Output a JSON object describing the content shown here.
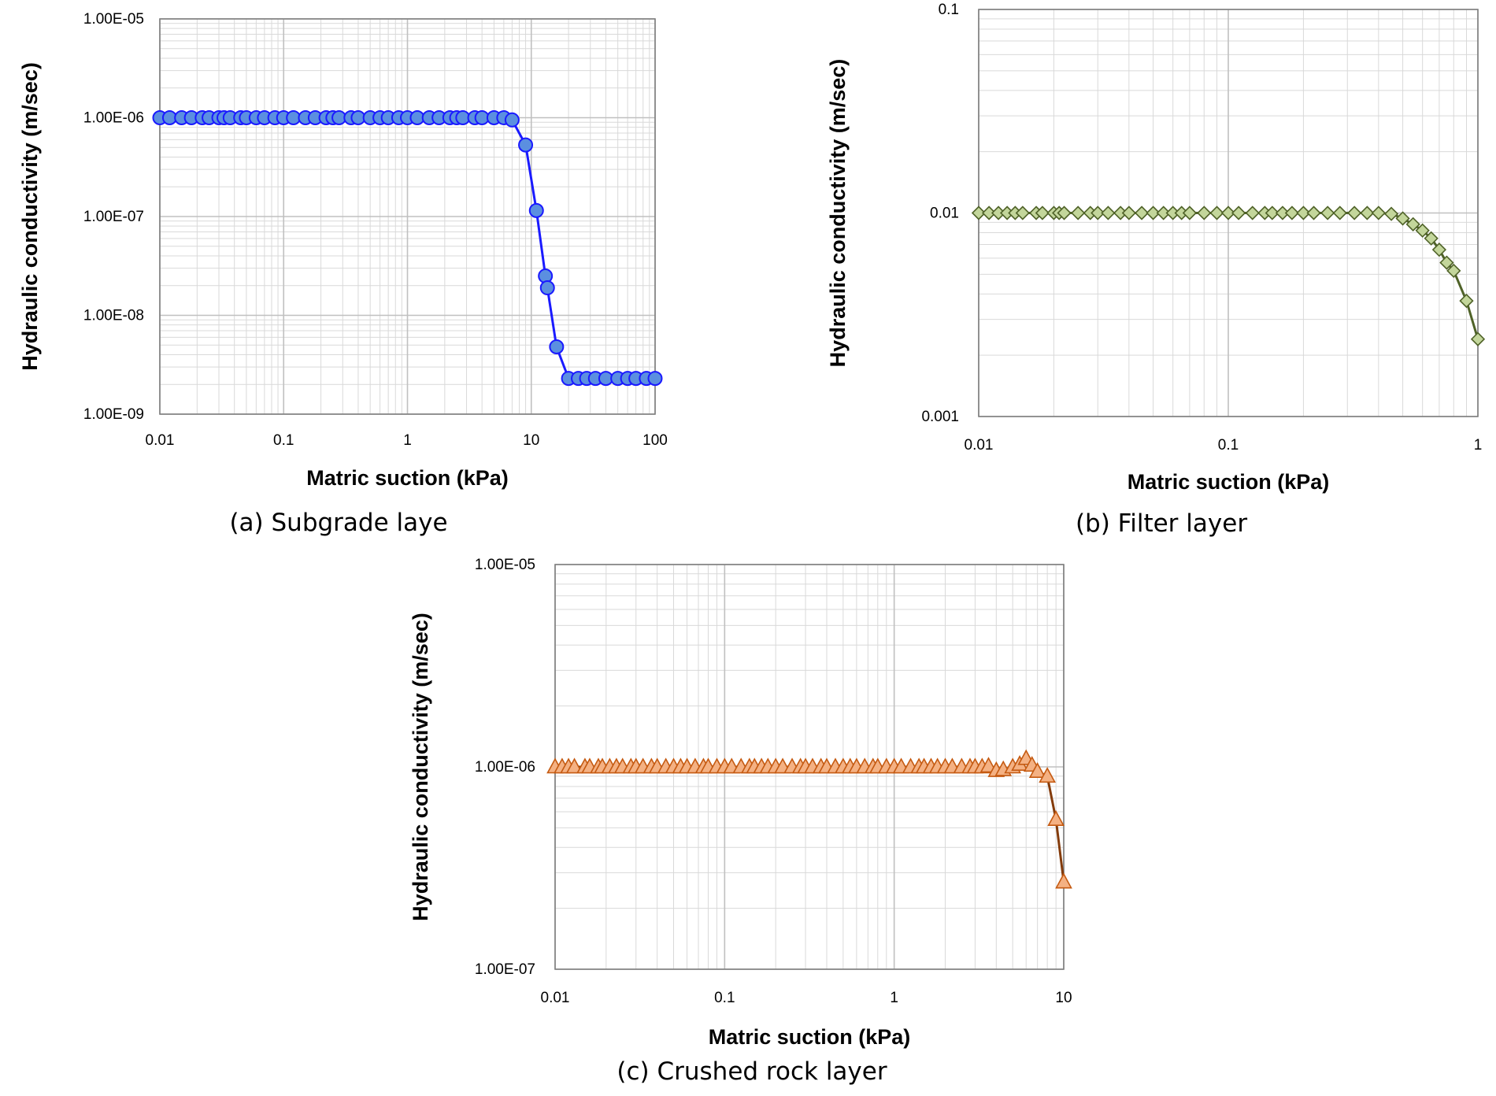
{
  "chart_data": [
    {
      "type": "line",
      "panel": "a",
      "caption": "(a) Subgrade laye",
      "title": "",
      "xlabel": "Matric suction (kPa)",
      "ylabel": "Hydraulic conductivity (m/sec)",
      "x_scale": "log",
      "y_scale": "log",
      "xlim": [
        0.01,
        100
      ],
      "ylim": [
        1e-09,
        1e-05
      ],
      "x_ticks": [
        0.01,
        0.1,
        1,
        10,
        100
      ],
      "x_tick_labels": [
        "0.01",
        "0.1",
        "1",
        "10",
        "100"
      ],
      "y_ticks": [
        1e-09,
        1e-08,
        1e-07,
        1e-06,
        1e-05
      ],
      "y_tick_labels": [
        "1.00E-09",
        "1.00E-08",
        "1.00E-07",
        "1.00E-06",
        "1.00E-05"
      ],
      "grid": true,
      "legend": "none",
      "marker": "circle",
      "line_color": "#1a1aff",
      "marker_fill": "#5b8fe0",
      "marker_edge": "#1a1aff",
      "series": [
        {
          "x": [
            0.01,
            0.012,
            0.015,
            0.018,
            0.022,
            0.025,
            0.03,
            0.033,
            0.037,
            0.045,
            0.05,
            0.06,
            0.07,
            0.085,
            0.1,
            0.12,
            0.15,
            0.18,
            0.22,
            0.25,
            0.28,
            0.35,
            0.4,
            0.5,
            0.6,
            0.7,
            0.85,
            1.0,
            1.2,
            1.5,
            1.8,
            2.2,
            2.5,
            2.8,
            3.5,
            4.0,
            5.0,
            6.0,
            7.0,
            9.0,
            11.0,
            13.0,
            13.5,
            16.0,
            20.0,
            24.0,
            28.0,
            33.0,
            40.0,
            50.0,
            60.0,
            70.0,
            85.0,
            100.0
          ],
          "y": [
            1e-06,
            1e-06,
            1e-06,
            1e-06,
            1e-06,
            1e-06,
            1e-06,
            1e-06,
            1e-06,
            1e-06,
            1e-06,
            1e-06,
            1e-06,
            1e-06,
            1e-06,
            1e-06,
            1e-06,
            1e-06,
            1e-06,
            1e-06,
            1e-06,
            1e-06,
            1e-06,
            1e-06,
            1e-06,
            1e-06,
            1e-06,
            1e-06,
            1e-06,
            1e-06,
            1e-06,
            1e-06,
            1e-06,
            1e-06,
            1e-06,
            1e-06,
            1e-06,
            1e-06,
            9.5e-07,
            5.3e-07,
            1.15e-07,
            2.5e-08,
            1.9e-08,
            4.8e-09,
            2.3e-09,
            2.3e-09,
            2.3e-09,
            2.3e-09,
            2.3e-09,
            2.3e-09,
            2.3e-09,
            2.3e-09,
            2.3e-09,
            2.3e-09
          ]
        }
      ]
    },
    {
      "type": "line",
      "panel": "b",
      "caption": "(b) Filter layer",
      "title": "",
      "xlabel": "Matric suction (kPa)",
      "ylabel": "Hydraulic conductivity (m/sec)",
      "x_scale": "log",
      "y_scale": "log",
      "xlim": [
        0.01,
        1
      ],
      "ylim": [
        0.001,
        0.1
      ],
      "x_ticks": [
        0.01,
        0.1,
        1
      ],
      "x_tick_labels": [
        "0.01",
        "0.1",
        "1"
      ],
      "y_ticks": [
        0.001,
        0.01,
        0.1
      ],
      "y_tick_labels": [
        "0.001",
        "0.01",
        "0.1"
      ],
      "grid": true,
      "legend": "none",
      "marker": "diamond",
      "line_color": "#4f6228",
      "marker_fill": "#c3d69b",
      "marker_edge": "#4f6228",
      "series": [
        {
          "x": [
            0.01,
            0.011,
            0.012,
            0.013,
            0.014,
            0.015,
            0.017,
            0.018,
            0.02,
            0.021,
            0.022,
            0.025,
            0.028,
            0.03,
            0.033,
            0.037,
            0.04,
            0.045,
            0.05,
            0.055,
            0.06,
            0.065,
            0.07,
            0.08,
            0.09,
            0.1,
            0.11,
            0.125,
            0.14,
            0.15,
            0.165,
            0.18,
            0.2,
            0.22,
            0.25,
            0.28,
            0.32,
            0.36,
            0.4,
            0.45,
            0.5,
            0.55,
            0.6,
            0.65,
            0.7,
            0.75,
            0.8,
            0.9,
            1.0
          ],
          "y": [
            0.01,
            0.01,
            0.01,
            0.01,
            0.01,
            0.01,
            0.01,
            0.01,
            0.01,
            0.01,
            0.01,
            0.01,
            0.01,
            0.01,
            0.01,
            0.01,
            0.01,
            0.01,
            0.01,
            0.01,
            0.01,
            0.01,
            0.01,
            0.01,
            0.01,
            0.01,
            0.01,
            0.01,
            0.01,
            0.01,
            0.01,
            0.01,
            0.01,
            0.01,
            0.01,
            0.01,
            0.01,
            0.01,
            0.01,
            0.0099,
            0.0094,
            0.0088,
            0.0082,
            0.0075,
            0.0066,
            0.0057,
            0.0052,
            0.0037,
            0.0024
          ]
        }
      ]
    },
    {
      "type": "line",
      "panel": "c",
      "caption": "(c) Crushed rock layer",
      "title": "",
      "xlabel": "Matric suction (kPa)",
      "ylabel": "Hydraulic conductivity (m/sec)",
      "x_scale": "log",
      "y_scale": "log",
      "xlim": [
        0.01,
        10
      ],
      "ylim": [
        1e-07,
        1e-05
      ],
      "x_ticks": [
        0.01,
        0.1,
        1,
        10
      ],
      "x_tick_labels": [
        "0.01",
        "0.1",
        "1",
        "10"
      ],
      "y_ticks": [
        1e-07,
        1e-06,
        1e-05
      ],
      "y_tick_labels": [
        "1.00E-07",
        "1.00E-06",
        "1.00E-05"
      ],
      "grid": true,
      "legend": "none",
      "marker": "triangle",
      "line_color": "#843c0c",
      "marker_fill": "#f4b183",
      "marker_edge": "#c55a11",
      "series": [
        {
          "x": [
            0.01,
            0.011,
            0.012,
            0.013,
            0.015,
            0.016,
            0.018,
            0.019,
            0.021,
            0.023,
            0.025,
            0.028,
            0.03,
            0.033,
            0.037,
            0.04,
            0.045,
            0.05,
            0.055,
            0.06,
            0.067,
            0.075,
            0.08,
            0.09,
            0.1,
            0.11,
            0.125,
            0.14,
            0.15,
            0.165,
            0.18,
            0.2,
            0.22,
            0.25,
            0.28,
            0.3,
            0.33,
            0.37,
            0.4,
            0.45,
            0.5,
            0.55,
            0.6,
            0.67,
            0.75,
            0.8,
            0.9,
            1.0,
            1.1,
            1.25,
            1.4,
            1.5,
            1.65,
            1.8,
            2.0,
            2.2,
            2.5,
            2.8,
            3.0,
            3.3,
            3.6,
            4.0,
            4.4,
            5.0,
            5.5,
            6.0,
            6.5,
            7.0,
            8.0,
            9.0,
            10.0
          ],
          "y": [
            1e-06,
            1e-06,
            1e-06,
            1e-06,
            1e-06,
            1e-06,
            1e-06,
            1e-06,
            1e-06,
            1e-06,
            1e-06,
            1e-06,
            1e-06,
            1e-06,
            1e-06,
            1e-06,
            1e-06,
            1e-06,
            1e-06,
            1e-06,
            1e-06,
            1e-06,
            1e-06,
            1e-06,
            1e-06,
            1e-06,
            1e-06,
            1e-06,
            1e-06,
            1e-06,
            1e-06,
            1e-06,
            1e-06,
            1e-06,
            1e-06,
            1e-06,
            1e-06,
            1e-06,
            1e-06,
            1e-06,
            1e-06,
            1e-06,
            1e-06,
            1e-06,
            1e-06,
            1e-06,
            1e-06,
            1e-06,
            1e-06,
            1e-06,
            1e-06,
            1e-06,
            1e-06,
            1e-06,
            1e-06,
            1e-06,
            1e-06,
            1e-06,
            1e-06,
            1e-06,
            1.01e-06,
            9.6e-07,
            9.7e-07,
            1e-06,
            1.03e-06,
            1.1e-06,
            1.02e-06,
            9.5e-07,
            9e-07,
            5.5e-07,
            2.7e-07
          ]
        }
      ]
    }
  ]
}
